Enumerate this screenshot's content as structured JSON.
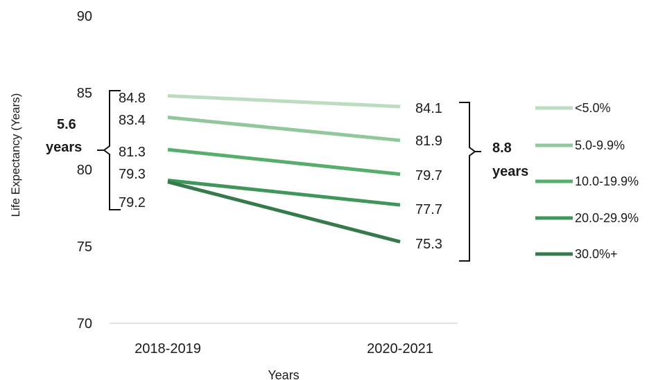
{
  "chart_data": {
    "type": "line",
    "xlabel": "Years",
    "ylabel": "Life Expectancy (Years)",
    "categories": [
      "2018-2019",
      "2020-2021"
    ],
    "ylim": [
      70,
      90
    ],
    "yticks": [
      70,
      75,
      80,
      85,
      90
    ],
    "grid": false,
    "legend_position": "right",
    "series": [
      {
        "name": "<5.0%",
        "values": [
          84.8,
          84.1
        ],
        "color": "#bcdcbf"
      },
      {
        "name": "5.0-9.9%",
        "values": [
          83.4,
          81.9
        ],
        "color": "#92c79b"
      },
      {
        "name": "10.0-19.9%",
        "values": [
          81.3,
          79.7
        ],
        "color": "#57ad6c"
      },
      {
        "name": "20.0-29.9%",
        "values": [
          79.3,
          77.7
        ],
        "color": "#3f9658"
      },
      {
        "name": "30.0%+",
        "values": [
          79.2,
          75.3
        ],
        "color": "#357a4a"
      }
    ],
    "left_labels": [
      "84.8",
      "83.4",
      "81.3",
      "79.3",
      "79.2"
    ],
    "right_labels": [
      "84.1",
      "81.9",
      "79.7",
      "77.7",
      "75.3"
    ],
    "annotations": {
      "left_bracket": {
        "value": "5.6",
        "unit": "years",
        "range": [
          79.2,
          84.8
        ]
      },
      "right_bracket": {
        "value": "8.8",
        "unit": "years",
        "range": [
          75.3,
          84.1
        ]
      }
    }
  }
}
